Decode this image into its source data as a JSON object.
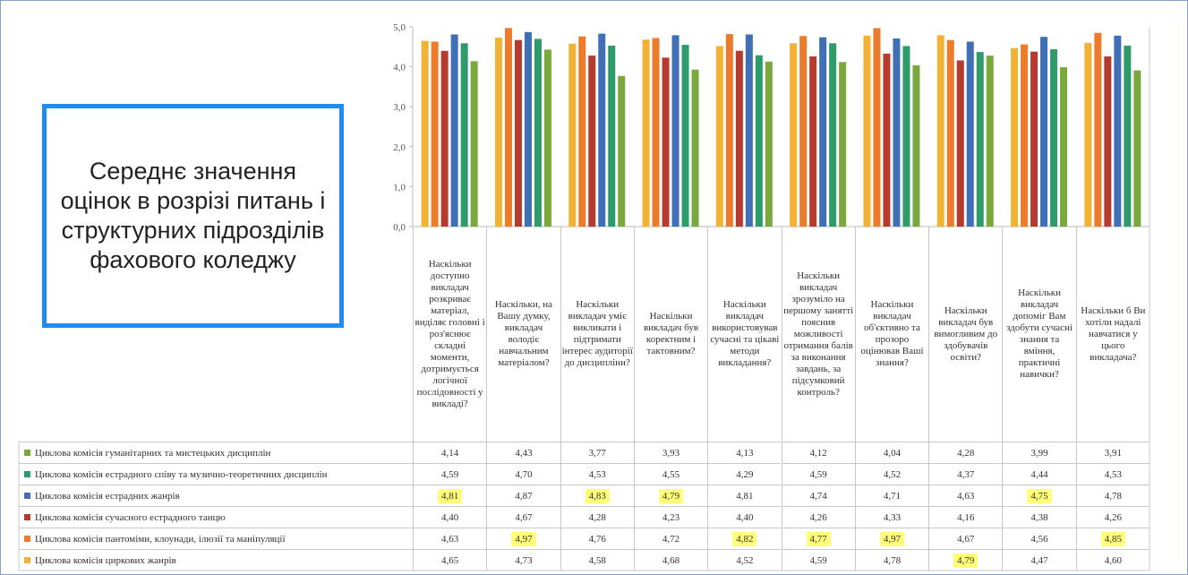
{
  "chart_data": {
    "type": "bar",
    "title": "Середнє значення оцінок в розрізі питань і структурних підрозділів фахового коледжу",
    "categories": [
      "Наскільки доступно викладач розкриває матеріал, виділяє головні і роз'яснює складні моменти, дотримується логічної послідовності у викладі?",
      "Наскільки, на Вашу думку, викладач володіє навчальним матеріалом?",
      "Наскільки викладач уміє викликати і підтримати інтерес аудиторії до дисципліни?",
      "Наскільки викладач був коректним і тактовним?",
      "Наскільки викладач використовував сучасні та цікаві методи викладання?",
      "Наскільки викладач зрозуміло на першому занятті пояснив можливості отримання балів за виконання завдань, за підсумковий контроль?",
      "Наскільки викладач об'єктивно та прозоро оцінював Ваші знання?",
      "Наскільки викладач був вимогливим до здобувачів освіти?",
      "Наскільки викладач допоміг Вам здобути сучасні знання та вміння, практичні навички?",
      "Наскільки б Ви хотіли надалі навчатися у цього викладача?"
    ],
    "series": [
      {
        "name": "Циклова комісія гуманітарних та мистецьких дисциплін",
        "color": "#7aa83c",
        "values": [
          4.14,
          4.43,
          3.77,
          3.93,
          4.13,
          4.12,
          4.04,
          4.28,
          3.99,
          3.91
        ],
        "value_labels": [
          "4,14",
          "4,43",
          "3,77",
          "3,93",
          "4,13",
          "4,12",
          "4,04",
          "4,28",
          "3,99",
          "3,91"
        ]
      },
      {
        "name": "Циклова комісія естрадного співу та музично-теоретичних дисциплін",
        "color": "#2e9c6a",
        "values": [
          4.59,
          4.7,
          4.53,
          4.55,
          4.29,
          4.59,
          4.52,
          4.37,
          4.44,
          4.53
        ],
        "value_labels": [
          "4,59",
          "4,70",
          "4,53",
          "4,55",
          "4,29",
          "4,59",
          "4,52",
          "4,37",
          "4,44",
          "4,53"
        ]
      },
      {
        "name": "Циклова комісія естрадних жанрів",
        "color": "#3f6fb5",
        "values": [
          4.81,
          4.87,
          4.83,
          4.79,
          4.81,
          4.74,
          4.71,
          4.63,
          4.75,
          4.78
        ],
        "value_labels": [
          "4,81",
          "4,87",
          "4,83",
          "4,79",
          "4,81",
          "4,74",
          "4,71",
          "4,63",
          "4,75",
          "4,78"
        ]
      },
      {
        "name": "Циклова комісія сучасного естрадного танцю",
        "color": "#b73a2e",
        "values": [
          4.4,
          4.67,
          4.28,
          4.23,
          4.4,
          4.26,
          4.33,
          4.16,
          4.38,
          4.26
        ],
        "value_labels": [
          "4,40",
          "4,67",
          "4,28",
          "4,23",
          "4,40",
          "4,26",
          "4,33",
          "4,16",
          "4,38",
          "4,26"
        ]
      },
      {
        "name": "Циклова комісія пантоміми, клоунади, ілюзії та маніпуляції",
        "color": "#ec7b2c",
        "values": [
          4.63,
          4.97,
          4.76,
          4.72,
          4.82,
          4.77,
          4.97,
          4.67,
          4.56,
          4.85
        ],
        "value_labels": [
          "4,63",
          "4,97",
          "4,76",
          "4,72",
          "4,82",
          "4,77",
          "4,97",
          "4,67",
          "4,56",
          "4,85"
        ]
      },
      {
        "name": "Циклова комісія циркових жанрів",
        "color": "#f2b233",
        "values": [
          4.65,
          4.73,
          4.58,
          4.68,
          4.52,
          4.59,
          4.78,
          4.79,
          4.47,
          4.6
        ],
        "value_labels": [
          "4,65",
          "4,73",
          "4,58",
          "4,68",
          "4,52",
          "4,59",
          "4,78",
          "4,79",
          "4,47",
          "4,60"
        ]
      }
    ],
    "ylim": [
      0,
      5
    ],
    "yticks": [
      {
        "value": 0,
        "label": "0,0"
      },
      {
        "value": 1,
        "label": "1,0"
      },
      {
        "value": 2,
        "label": "2,0"
      },
      {
        "value": 3,
        "label": "3,0"
      },
      {
        "value": 4,
        "label": "4,0"
      },
      {
        "value": 5,
        "label": "5,0"
      }
    ],
    "grid": false,
    "highlight_max": true,
    "highlight_color": "#ffff7a"
  }
}
